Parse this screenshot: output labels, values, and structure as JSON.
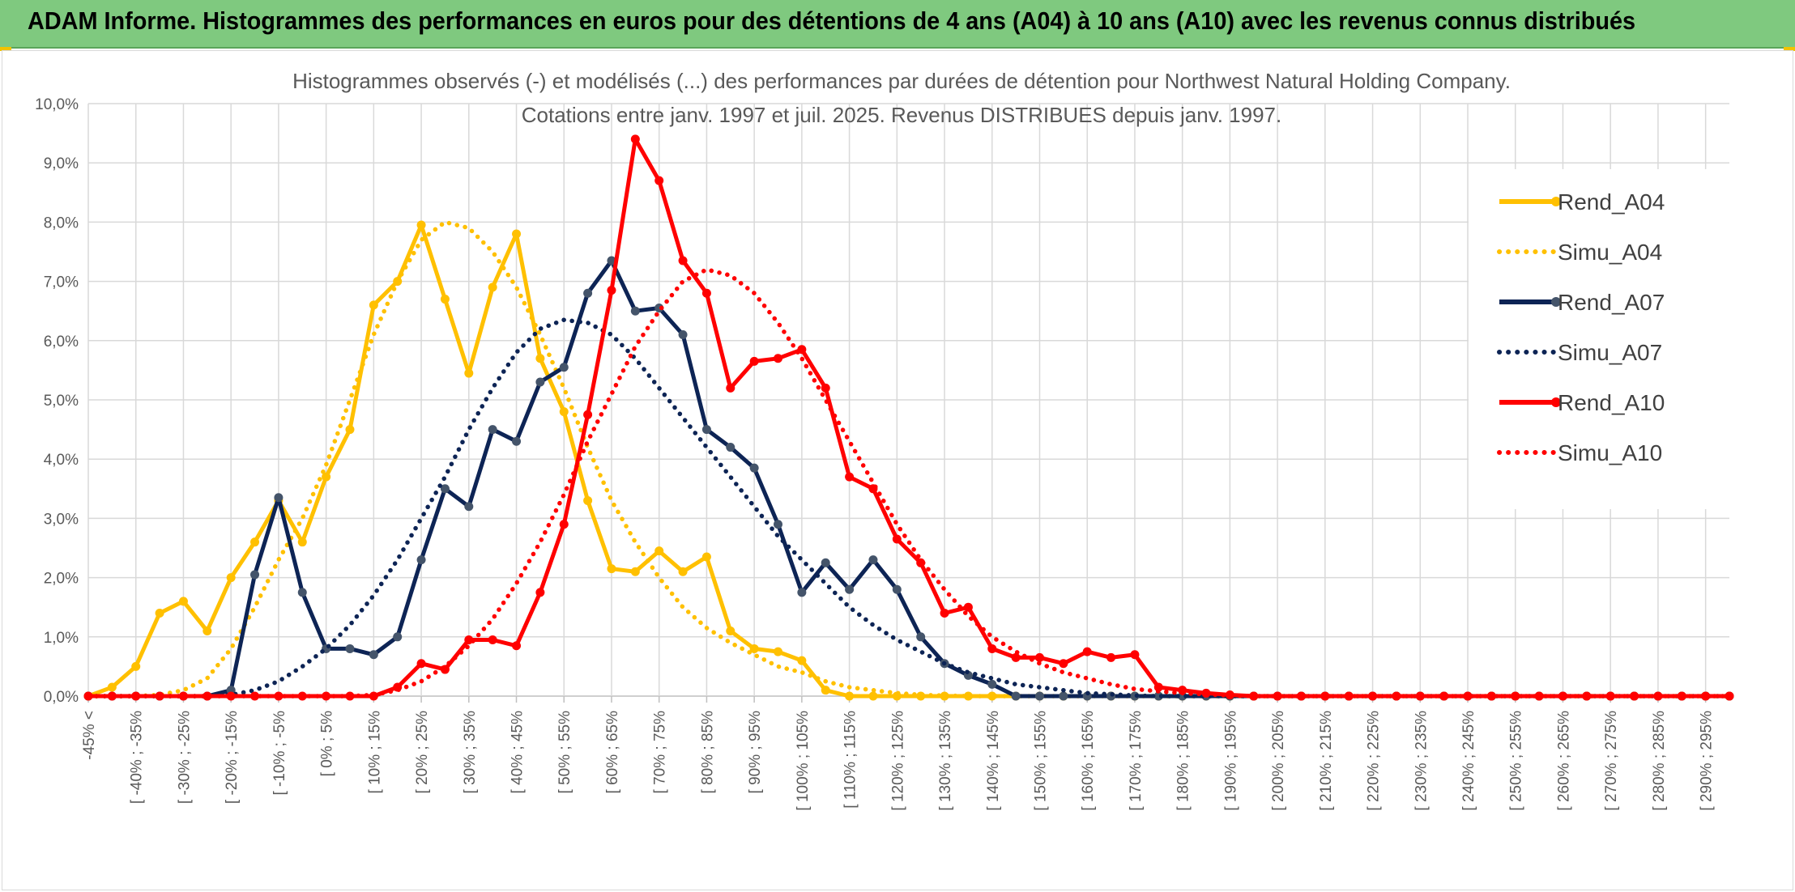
{
  "banner": {
    "title": "ADAM Informe. Histogrammes des performances en euros pour des détentions de 4 ans (A04) à 10 ans (A10) avec les revenus connus distribués",
    "color": "#7fc97f"
  },
  "chart_data": {
    "type": "line",
    "title": "Histogrammes observés (-) et modélisés (...) des performances par durées de détention pour Northwest Natural Holding Company.",
    "subtitle": "Cotations entre janv. 1997 et juil. 2025. Revenus DISTRIBUES depuis janv. 1997.",
    "xlabel": "",
    "ylabel": "",
    "ylim": [
      0,
      10
    ],
    "y_ticks": [
      "0,0%",
      "1,0%",
      "2,0%",
      "3,0%",
      "4,0%",
      "5,0%",
      "6,0%",
      "7,0%",
      "8,0%",
      "9,0%",
      "10,0%"
    ],
    "grid": true,
    "legend_position": "right",
    "x_labels": [
      "-45% <",
      "[ -40% ; -35%",
      "[ -30% ; -25%",
      "[ -20% ; -15%",
      "[ -10% ; -5%",
      "[ 0% ; 5%",
      "[ 10% ; 15%",
      "[ 20% ; 25%",
      "[ 30% ; 35%",
      "[ 40% ; 45%",
      "[ 50% ; 55%",
      "[ 60% ; 65%",
      "[ 70% ; 75%",
      "[ 80% ; 85%",
      "[ 90% ; 95%",
      "[ 100% ; 105%",
      "[ 110% ; 115%",
      "[ 120% ; 125%",
      "[ 130% ; 135%",
      "[ 140% ; 145%",
      "[ 150% ; 155%",
      "[ 160% ; 165%",
      "[ 170% ; 175%",
      "[ 180% ; 185%",
      "[ 190% ; 195%",
      "[ 200% ; 205%",
      "[ 210% ; 215%",
      "[ 220% ; 225%",
      "[ 230% ; 235%",
      "[ 240% ; 245%",
      "[ 250% ; 255%",
      "[ 260% ; 265%",
      "[ 270% ; 275%",
      "[ 280% ; 285%",
      "[ 290% ; 295%"
    ],
    "series": [
      {
        "name": "Rend_A04",
        "style": "solid",
        "color": "#ffc000",
        "values": [
          0.0,
          0.15,
          0.5,
          1.4,
          1.6,
          1.1,
          2.0,
          2.6,
          3.3,
          2.6,
          3.7,
          4.5,
          6.6,
          7.0,
          7.95,
          6.7,
          5.45,
          6.9,
          7.8,
          5.7,
          4.8,
          3.3,
          2.15,
          2.1,
          2.45,
          2.1,
          2.35,
          1.1,
          0.8,
          0.75,
          0.6,
          0.1,
          0.0,
          0.0,
          0.0,
          0.0,
          0.0,
          0.0,
          0.0,
          0.0,
          0.0,
          0.0,
          0.0,
          0.0,
          0.0,
          0.0,
          0.0,
          0.0,
          0.0,
          0.0,
          0.0,
          0.0,
          0.0,
          0.0,
          0.0,
          0.0,
          0.0,
          0.0,
          0.0,
          0.0,
          0.0,
          0.0,
          0.0,
          0.0,
          0.0,
          0.0,
          0.0,
          0.0,
          0.0,
          0.0
        ]
      },
      {
        "name": "Simu_A04",
        "style": "dotted",
        "color": "#ffc000",
        "values": [
          0.0,
          0.0,
          0.0,
          0.02,
          0.1,
          0.3,
          0.8,
          1.5,
          2.3,
          3.0,
          3.9,
          5.0,
          6.1,
          7.0,
          7.7,
          8.0,
          7.9,
          7.5,
          6.9,
          6.1,
          5.2,
          4.2,
          3.3,
          2.6,
          2.0,
          1.5,
          1.15,
          0.9,
          0.7,
          0.5,
          0.4,
          0.25,
          0.15,
          0.1,
          0.05,
          0.02,
          0.01,
          0.0,
          0.0,
          0.0,
          0.0,
          0.0,
          0.0,
          0.0,
          0.0,
          0.0,
          0.0,
          0.0,
          0.0,
          0.0,
          0.0,
          0.0,
          0.0,
          0.0,
          0.0,
          0.0,
          0.0,
          0.0,
          0.0,
          0.0,
          0.0,
          0.0,
          0.0,
          0.0,
          0.0,
          0.0,
          0.0,
          0.0,
          0.0,
          0.0
        ]
      },
      {
        "name": "Rend_A07",
        "style": "solid",
        "color": "#0d2455",
        "values": [
          0.0,
          0.0,
          0.0,
          0.0,
          0.0,
          0.0,
          0.1,
          2.05,
          3.35,
          1.75,
          0.8,
          0.8,
          0.7,
          1.0,
          2.3,
          3.5,
          3.2,
          4.5,
          4.3,
          5.3,
          5.55,
          6.8,
          7.35,
          6.5,
          6.55,
          6.1,
          4.5,
          4.2,
          3.85,
          2.9,
          1.75,
          2.25,
          1.8,
          2.3,
          1.8,
          1.0,
          0.55,
          0.35,
          0.2,
          0.0,
          0.0,
          0.0,
          0.0,
          0.0,
          0.0,
          0.0,
          0.0,
          0.0,
          0.0,
          0.0,
          0.0,
          0.0,
          0.0,
          0.0,
          0.0,
          0.0,
          0.0,
          0.0,
          0.0,
          0.0,
          0.0,
          0.0,
          0.0,
          0.0,
          0.0,
          0.0,
          0.0,
          0.0,
          0.0,
          0.0
        ]
      },
      {
        "name": "Simu_A07",
        "style": "dotted",
        "color": "#0d2455",
        "values": [
          0.0,
          0.0,
          0.0,
          0.0,
          0.0,
          0.0,
          0.02,
          0.1,
          0.25,
          0.5,
          0.8,
          1.2,
          1.7,
          2.3,
          3.0,
          3.7,
          4.5,
          5.2,
          5.8,
          6.2,
          6.35,
          6.3,
          6.1,
          5.7,
          5.2,
          4.7,
          4.2,
          3.7,
          3.2,
          2.7,
          2.3,
          1.9,
          1.5,
          1.2,
          0.95,
          0.75,
          0.55,
          0.4,
          0.3,
          0.2,
          0.15,
          0.1,
          0.05,
          0.03,
          0.01,
          0.0,
          0.0,
          0.0,
          0.0,
          0.0,
          0.0,
          0.0,
          0.0,
          0.0,
          0.0,
          0.0,
          0.0,
          0.0,
          0.0,
          0.0,
          0.0,
          0.0,
          0.0,
          0.0,
          0.0,
          0.0,
          0.0,
          0.0,
          0.0,
          0.0
        ]
      },
      {
        "name": "Rend_A10",
        "style": "solid",
        "color": "#ff0000",
        "values": [
          0.0,
          0.0,
          0.0,
          0.0,
          0.0,
          0.0,
          0.0,
          0.0,
          0.0,
          0.0,
          0.0,
          0.0,
          0.0,
          0.15,
          0.55,
          0.45,
          0.95,
          0.95,
          0.85,
          1.75,
          2.9,
          4.75,
          6.85,
          9.4,
          8.7,
          7.35,
          6.8,
          5.2,
          5.65,
          5.7,
          5.85,
          5.2,
          3.7,
          3.5,
          2.65,
          2.25,
          1.4,
          1.5,
          0.8,
          0.65,
          0.65,
          0.55,
          0.75,
          0.65,
          0.7,
          0.15,
          0.1,
          0.05,
          0.02,
          0.0,
          0.0,
          0.0,
          0.0,
          0.0,
          0.0,
          0.0,
          0.0,
          0.0,
          0.0,
          0.0,
          0.0,
          0.0,
          0.0,
          0.0,
          0.0,
          0.0,
          0.0,
          0.0,
          0.0,
          0.0
        ]
      },
      {
        "name": "Simu_A10",
        "style": "dotted",
        "color": "#ff0000",
        "values": [
          0.0,
          0.0,
          0.0,
          0.0,
          0.0,
          0.0,
          0.0,
          0.0,
          0.0,
          0.0,
          0.0,
          0.0,
          0.02,
          0.1,
          0.25,
          0.5,
          0.85,
          1.3,
          1.9,
          2.6,
          3.4,
          4.3,
          5.1,
          5.9,
          6.5,
          7.0,
          7.2,
          7.1,
          6.8,
          6.3,
          5.7,
          5.0,
          4.3,
          3.6,
          2.9,
          2.3,
          1.8,
          1.35,
          1.0,
          0.75,
          0.55,
          0.4,
          0.3,
          0.2,
          0.12,
          0.08,
          0.05,
          0.03,
          0.01,
          0.0,
          0.0,
          0.0,
          0.0,
          0.0,
          0.0,
          0.0,
          0.0,
          0.0,
          0.0,
          0.0,
          0.0,
          0.0,
          0.0,
          0.0,
          0.0,
          0.0,
          0.0,
          0.0,
          0.0,
          0.0
        ]
      }
    ]
  }
}
